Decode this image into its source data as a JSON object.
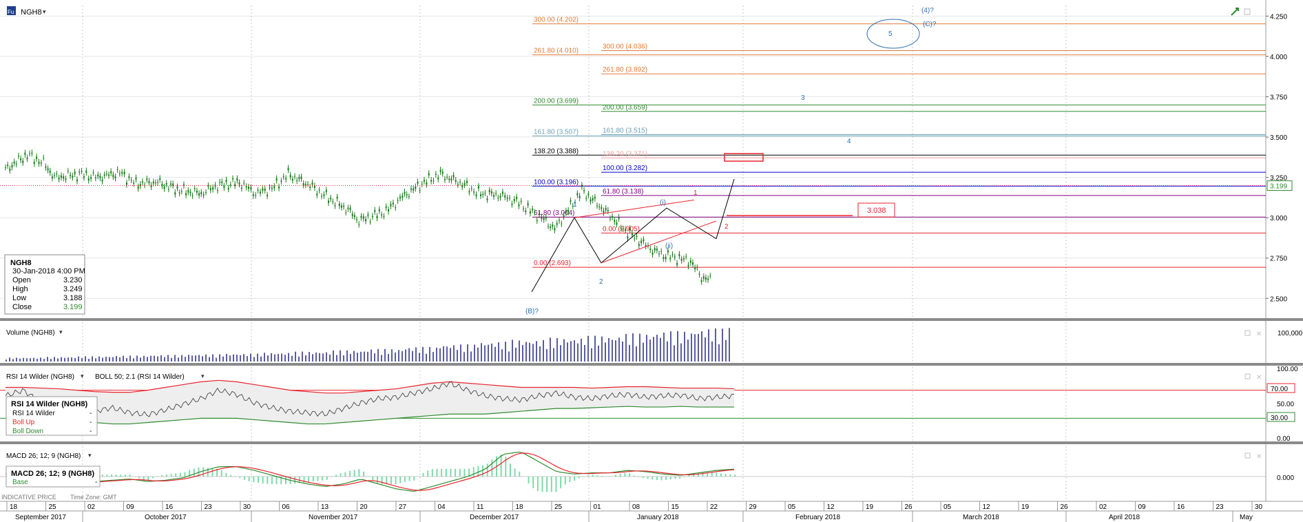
{
  "header": {
    "symbol_badge": "Fu",
    "symbol": "NGH8",
    "dropdown_glyph": "▾"
  },
  "ohlc_box": {
    "title": "NGH8",
    "datetime": "30-Jan-2018 4:00 PM",
    "rows": [
      {
        "label": "Open",
        "value": "3.230"
      },
      {
        "label": "High",
        "value": "3.249"
      },
      {
        "label": "Low",
        "value": "3.188"
      },
      {
        "label": "Close",
        "value": "3.199"
      }
    ]
  },
  "volume_panel": {
    "title": "Volume (NGH8)",
    "axis_label": "100,000"
  },
  "rsi_panel": {
    "title": "RSI 14 Wilder (NGH8)",
    "boll_title": "BOLL 50; 2.1 (RSI 14 Wilder)",
    "legend_title": "RSI 14 Wilder (NGH8)",
    "legend_rows": [
      {
        "label": "RSI 14 Wilder",
        "value": "-"
      },
      {
        "label": "Boll Up",
        "value": "-"
      },
      {
        "label": "Boll Down",
        "value": "-"
      }
    ],
    "axis_labels": [
      "100.00",
      "50.00",
      "0.00"
    ],
    "level_70": "70.00",
    "level_30": "30.00"
  },
  "macd_panel": {
    "title": "MACD 26; 12; 9 (NGH8)",
    "legend_title": "MACD 26; 12; 9 (NGH8)",
    "legend_row": "Base",
    "legend_value": "-",
    "axis_label": "0.000"
  },
  "footer": {
    "indicative": "INDICATIVE PRICE",
    "timezone": "Time Zone: GMT",
    "days": [
      "18",
      "25",
      "02",
      "09",
      "16",
      "23",
      "30",
      "06",
      "13",
      "20",
      "27",
      "04",
      "11",
      "18",
      "25",
      "01",
      "08",
      "15",
      "22",
      "29",
      "05",
      "12",
      "19",
      "26",
      "05",
      "12",
      "19",
      "26",
      "02",
      "09",
      "16",
      "23",
      "30"
    ],
    "months": [
      "September 2017",
      "October 2017",
      "November 2017",
      "December 2017",
      "January 2018",
      "February 2018",
      "March 2018",
      "April 2018",
      "May"
    ]
  },
  "colors": {
    "background": "#ffffff",
    "candle": "#1a7a1a",
    "red_line": "#e8232b",
    "volume_bar": "#5a5ca0",
    "panel_sep": "#808080",
    "close_badge": "#2e8b2e"
  },
  "chart_data": [
    {
      "type": "candlestick",
      "title": "NGH8",
      "y_ticks": [
        "4.250",
        "4.000",
        "3.750",
        "3.500",
        "3.250",
        "3.000",
        "2.750",
        "2.500"
      ],
      "ylim": [
        2.45,
        4.29
      ],
      "x_axis_day_labels": [
        "18",
        "25",
        "02",
        "09",
        "16",
        "23",
        "30",
        "06",
        "13",
        "20",
        "27",
        "04",
        "11",
        "18",
        "25",
        "01",
        "08",
        "15",
        "22",
        "29",
        "05",
        "12",
        "19",
        "26",
        "05",
        "12",
        "19",
        "26",
        "02",
        "09",
        "16",
        "23",
        "30"
      ],
      "last_close": "3.199",
      "close_series": [
        {
          "date": "2017-09-18",
          "close": 3.3
        },
        {
          "date": "2017-09-22",
          "close": 3.39
        },
        {
          "date": "2017-09-25",
          "close": 3.34
        },
        {
          "date": "2017-09-27",
          "close": 3.25
        },
        {
          "date": "2017-10-02",
          "close": 3.27
        },
        {
          "date": "2017-10-05",
          "close": 3.25
        },
        {
          "date": "2017-10-09",
          "close": 3.28
        },
        {
          "date": "2017-10-12",
          "close": 3.21
        },
        {
          "date": "2017-10-16",
          "close": 3.22
        },
        {
          "date": "2017-10-20",
          "close": 3.17
        },
        {
          "date": "2017-10-24",
          "close": 3.15
        },
        {
          "date": "2017-10-27",
          "close": 3.2
        },
        {
          "date": "2017-10-31",
          "close": 3.22
        },
        {
          "date": "2017-11-03",
          "close": 3.15
        },
        {
          "date": "2017-11-06",
          "close": 3.18
        },
        {
          "date": "2017-11-09",
          "close": 3.27
        },
        {
          "date": "2017-11-13",
          "close": 3.2
        },
        {
          "date": "2017-11-16",
          "close": 3.13
        },
        {
          "date": "2017-11-20",
          "close": 3.05
        },
        {
          "date": "2017-11-22",
          "close": 2.98
        },
        {
          "date": "2017-11-27",
          "close": 3.04
        },
        {
          "date": "2017-11-30",
          "close": 3.13
        },
        {
          "date": "2017-12-04",
          "close": 3.22
        },
        {
          "date": "2017-12-07",
          "close": 3.27
        },
        {
          "date": "2017-12-11",
          "close": 3.21
        },
        {
          "date": "2017-12-14",
          "close": 3.15
        },
        {
          "date": "2017-12-18",
          "close": 3.14
        },
        {
          "date": "2017-12-21",
          "close": 3.1
        },
        {
          "date": "2017-12-26",
          "close": 2.99
        },
        {
          "date": "2017-12-28",
          "close": 2.93
        },
        {
          "date": "2018-01-02",
          "close": 3.17
        },
        {
          "date": "2018-01-04",
          "close": 3.11
        },
        {
          "date": "2018-01-08",
          "close": 2.99
        },
        {
          "date": "2018-01-10",
          "close": 2.92
        },
        {
          "date": "2018-01-15",
          "close": 2.8
        },
        {
          "date": "2018-01-17",
          "close": 2.77
        },
        {
          "date": "2018-01-22",
          "close": 2.73
        },
        {
          "date": "2018-01-24",
          "close": 2.63
        },
        {
          "date": "2018-01-26",
          "close": 2.61
        }
      ],
      "fib_levels": [
        {
          "label": "300.00 (4.202)",
          "value": 4.202,
          "color": "#e07b3a"
        },
        {
          "label": "300.00 (4.036)",
          "value": 4.036,
          "color": "#e07b3a"
        },
        {
          "label": "261.80 (4.010)",
          "value": 4.01,
          "color": "#e07b3a"
        },
        {
          "label": "261.80 (3.892)",
          "value": 3.892,
          "color": "#e07b3a"
        },
        {
          "label": "200.00 (3.699)",
          "value": 3.699,
          "color": "#2e8b2e"
        },
        {
          "label": "200.00 (3.659)",
          "value": 3.659,
          "color": "#2e8b2e"
        },
        {
          "label": "161.80 (3.515)",
          "value": 3.515,
          "color": "#6aa0b8"
        },
        {
          "label": "161.80 (3.507)",
          "value": 3.507,
          "color": "#6aa0b8"
        },
        {
          "label": "138.20 (3.388)",
          "value": 3.388,
          "color": "#000000"
        },
        {
          "label": "138.20 (3.371)",
          "value": 3.371,
          "color": "#f0a0a0"
        },
        {
          "label": "100.00 (3.282)",
          "value": 3.282,
          "color": "#0000cc"
        },
        {
          "label": "100.00 (3.196)",
          "value": 3.196,
          "color": "#0000cc"
        },
        {
          "label": "61.80 (3.138)",
          "value": 3.138,
          "color": "#800080"
        },
        {
          "label": "61.80 (3.004)",
          "value": 3.004,
          "color": "#800080"
        },
        {
          "label": "0.00 (2.905)",
          "value": 2.905,
          "color": "#e8232b"
        },
        {
          "label": "0.00 (2.693)",
          "value": 2.693,
          "color": "#e8232b"
        }
      ],
      "target_box_label": "3.038",
      "wave_labels": [
        "1",
        "2",
        "(i)",
        "(ii)",
        "1",
        "2",
        "3",
        "4",
        "5",
        "(4)?",
        "(C)?",
        "(B)?"
      ]
    },
    {
      "type": "bar",
      "title": "Volume (NGH8)",
      "y_ticks": [
        "100,000"
      ],
      "x_range": [
        "2017-09-18",
        "2018-01-30"
      ],
      "values": [
        12000,
        14000,
        16000,
        18000,
        20000,
        22000,
        24000,
        27000,
        30000,
        34000,
        38000,
        44000,
        52000,
        60000,
        66000,
        72000,
        78000,
        85000,
        92000,
        100000,
        106000
      ]
    },
    {
      "type": "line",
      "title": "RSI 14 Wilder (NGH8)",
      "series": [
        {
          "name": "RSI 14 Wilder",
          "values": [
            62,
            70,
            52,
            44,
            48,
            40,
            45,
            38,
            35,
            42,
            50,
            58,
            70,
            64,
            52,
            45,
            40,
            38,
            36,
            44,
            52,
            58,
            60,
            66,
            72,
            80,
            70,
            62,
            58,
            56,
            62,
            66,
            60,
            58,
            62,
            64,
            60,
            62,
            63,
            58,
            60,
            62
          ]
        },
        {
          "name": "Boll Up",
          "values": [
            74,
            74,
            73,
            72,
            70,
            68,
            67,
            67,
            70,
            74,
            78,
            82,
            84,
            82,
            78,
            74,
            70,
            68,
            66,
            66,
            68,
            70,
            72,
            76,
            80,
            82,
            80,
            78,
            76,
            74,
            74,
            74,
            74,
            73,
            74,
            75,
            75,
            74,
            73,
            73,
            73,
            72
          ]
        },
        {
          "name": "Boll Down",
          "values": [
            30,
            30,
            29,
            28,
            26,
            24,
            22,
            22,
            24,
            26,
            28,
            30,
            30,
            30,
            28,
            26,
            24,
            22,
            22,
            24,
            26,
            28,
            30,
            32,
            34,
            36,
            36,
            36,
            38,
            40,
            42,
            44,
            44,
            45,
            46,
            47,
            46,
            46,
            47,
            46,
            46,
            46
          ]
        }
      ],
      "y_ticks": [
        "100.00",
        "70.00",
        "50.00",
        "30.00",
        "0.00"
      ],
      "ylim": [
        0,
        100
      ]
    },
    {
      "type": "line",
      "title": "MACD 26; 12; 9 (NGH8)",
      "series": [
        {
          "name": "Base",
          "values": [
            0.02,
            0.01,
            0.0,
            -0.03,
            -0.05,
            -0.04,
            -0.03,
            -0.02,
            -0.04,
            -0.03,
            -0.01,
            0.04,
            0.08,
            0.08,
            0.05,
            0.01,
            -0.03,
            -0.06,
            -0.08,
            -0.06,
            -0.02,
            -0.06,
            -0.1,
            -0.12,
            -0.08,
            -0.04,
            0.0,
            0.06,
            0.18,
            0.2,
            0.12,
            0.04,
            0.02,
            0.03,
            0.03,
            0.05,
            0.04,
            0.02,
            0.01,
            0.03,
            0.05,
            0.06
          ]
        }
      ],
      "y_ticks": [
        "0.000"
      ]
    }
  ]
}
